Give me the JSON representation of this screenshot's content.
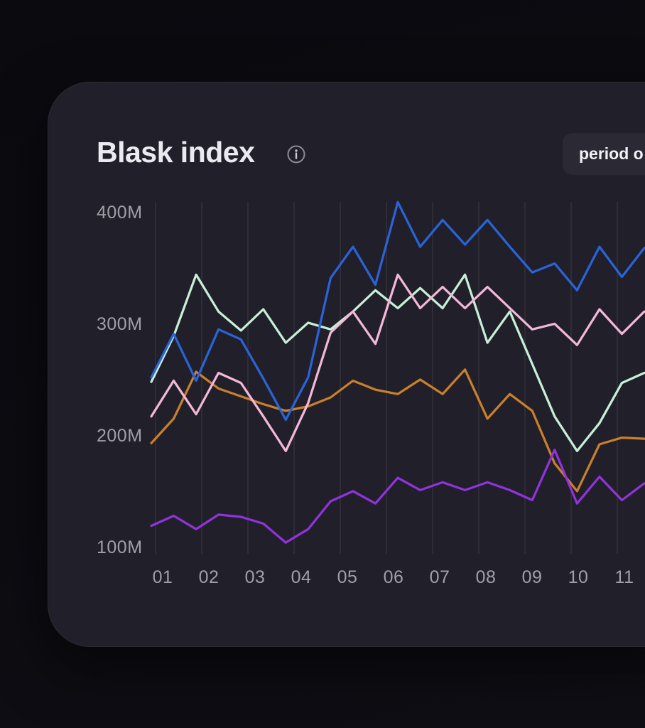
{
  "header": {
    "title": "Blask index",
    "info_icon": "info-circle",
    "period_button_label": "period o"
  },
  "colors": {
    "page_background": "#0b0b10",
    "card_background": "#211f29",
    "title_text": "#eceaf1",
    "axis_text": "#9fa0a8",
    "gridline": "#2e2d37",
    "button_background": "#2b2a34"
  },
  "chart_data": {
    "type": "line",
    "title": "Blask index",
    "unit": "M",
    "y_min": 100,
    "y_max": 400,
    "grid": "vertical-only",
    "legend": "none",
    "x_tick_labels": [
      "01",
      "02",
      "03",
      "04",
      "05",
      "06",
      "07",
      "08",
      "09",
      "10",
      "11"
    ],
    "y_ticks": [
      {
        "label": "400M",
        "value": 400
      },
      {
        "label": "300M",
        "value": 300
      },
      {
        "label": "200M",
        "value": 200
      },
      {
        "label": "100M",
        "value": 100
      }
    ],
    "points_per_month": 2,
    "series": [
      {
        "name": "orange",
        "color": "#c8802d",
        "values": [
          194,
          216,
          258,
          243,
          236,
          229,
          223,
          227,
          235,
          250,
          242,
          238,
          251,
          238,
          260,
          216,
          238,
          223,
          176,
          151,
          193,
          199,
          198
        ]
      },
      {
        "name": "purple",
        "color": "#8f33db",
        "values": [
          120,
          129,
          117,
          130,
          128,
          122,
          105,
          117,
          142,
          151,
          140,
          163,
          152,
          159,
          152,
          159,
          152,
          143,
          188,
          140,
          164,
          143,
          158
        ]
      },
      {
        "name": "mint",
        "color": "#c6efd8",
        "values": [
          249,
          290,
          345,
          312,
          295,
          314,
          284,
          302,
          296,
          312,
          331,
          315,
          333,
          315,
          345,
          284,
          312,
          265,
          218,
          187,
          212,
          248,
          257
        ]
      },
      {
        "name": "pink",
        "color": "#f2b7d9",
        "values": [
          218,
          250,
          220,
          257,
          248,
          218,
          187,
          230,
          293,
          312,
          283,
          345,
          315,
          334,
          315,
          334,
          315,
          296,
          301,
          282,
          314,
          292,
          312
        ]
      },
      {
        "name": "blue",
        "color": "#2a63d8",
        "values": [
          253,
          292,
          250,
          296,
          287,
          252,
          215,
          253,
          342,
          370,
          336,
          410,
          370,
          394,
          372,
          394,
          370,
          347,
          355,
          331,
          370,
          343,
          369
        ]
      }
    ]
  }
}
